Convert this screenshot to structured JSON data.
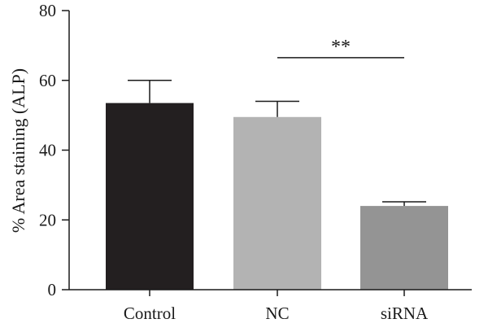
{
  "chart_data": {
    "type": "bar",
    "categories": [
      "Control",
      "NC",
      "siRNA"
    ],
    "series": [
      {
        "values": [
          53.5,
          49.5,
          24
        ],
        "errors": [
          6.5,
          4.5,
          1.2
        ],
        "colors": [
          "#231f20",
          "#b3b3b3",
          "#949494"
        ]
      }
    ],
    "ylabel": "% Area staining (ALP)",
    "xlabel": "",
    "ylim": [
      0,
      80
    ],
    "yticks": [
      "0",
      "20",
      "40",
      "60",
      "80"
    ],
    "grid": false,
    "annotations": [
      {
        "text": "**",
        "from": "NC",
        "to": "siRNA",
        "y": 66.5
      }
    ]
  }
}
